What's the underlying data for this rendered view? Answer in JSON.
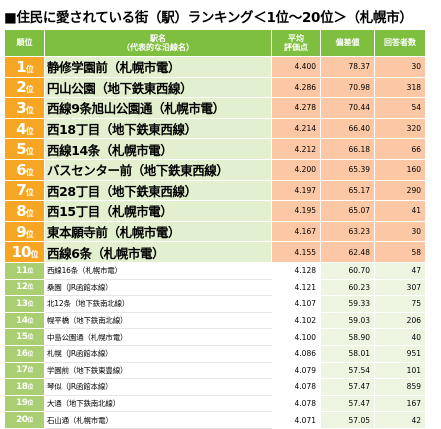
{
  "title": "■住民に愛されている街（駅）ランキング＜1位～20位＞（札幌市）",
  "headers": {
    "rank": "順位",
    "name_line1": "駅名",
    "name_line2": "（代表的な沿線名）",
    "score_line1": "平均",
    "score_line2": "評価点",
    "deviation": "偏差値",
    "respondents": "回答者数"
  },
  "rank_suffix": "位",
  "rows": [
    {
      "rank": "1",
      "name": "静修学園前（札幌市電）",
      "score": "4.400",
      "deviation": "78.37",
      "respondents": "30"
    },
    {
      "rank": "2",
      "name": "円山公園（地下鉄東西線）",
      "score": "4.286",
      "deviation": "70.98",
      "respondents": "318"
    },
    {
      "rank": "3",
      "name": "西線9条旭山公園通（札幌市電）",
      "score": "4.278",
      "deviation": "70.44",
      "respondents": "54"
    },
    {
      "rank": "4",
      "name": "西18丁目（地下鉄東西線）",
      "score": "4.214",
      "deviation": "66.40",
      "respondents": "320"
    },
    {
      "rank": "5",
      "name": "西線14条（札幌市電）",
      "score": "4.212",
      "deviation": "66.18",
      "respondents": "66"
    },
    {
      "rank": "6",
      "name": "バスセンター前（地下鉄東西線）",
      "score": "4.200",
      "deviation": "65.39",
      "respondents": "160"
    },
    {
      "rank": "7",
      "name": "西28丁目（地下鉄東西線）",
      "score": "4.197",
      "deviation": "65.17",
      "respondents": "290"
    },
    {
      "rank": "8",
      "name": "西15丁目（札幌市電）",
      "score": "4.195",
      "deviation": "65.07",
      "respondents": "41"
    },
    {
      "rank": "9",
      "name": "東本願寺前（札幌市電）",
      "score": "4.167",
      "deviation": "63.23",
      "respondents": "30"
    },
    {
      "rank": "10",
      "name": "西線6条（札幌市電）",
      "score": "4.155",
      "deviation": "62.48",
      "respondents": "58"
    },
    {
      "rank": "11",
      "name": "西線16条（札幌市電）",
      "score": "4.128",
      "deviation": "60.70",
      "respondents": "47"
    },
    {
      "rank": "12",
      "name": "桑園（JR函館本線）",
      "score": "4.121",
      "deviation": "60.23",
      "respondents": "307"
    },
    {
      "rank": "13",
      "name": "北12条（地下鉄南北線）",
      "score": "4.107",
      "deviation": "59.33",
      "respondents": "75"
    },
    {
      "rank": "14",
      "name": "幌平橋（地下鉄南北線）",
      "score": "4.102",
      "deviation": "59.03",
      "respondents": "206"
    },
    {
      "rank": "15",
      "name": "中島公園通（札幌市電）",
      "score": "4.100",
      "deviation": "58.90",
      "respondents": "40"
    },
    {
      "rank": "16",
      "name": "札幌（JR函館本線）",
      "score": "4.086",
      "deviation": "58.01",
      "respondents": "951"
    },
    {
      "rank": "17",
      "name": "学園前（地下鉄東豊線）",
      "score": "4.079",
      "deviation": "57.54",
      "respondents": "101"
    },
    {
      "rank": "18",
      "name": "琴似（JR函館本線）",
      "score": "4.078",
      "deviation": "57.47",
      "respondents": "859"
    },
    {
      "rank": "19",
      "name": "大通（地下鉄南北線）",
      "score": "4.078",
      "deviation": "57.47",
      "respondents": "167"
    },
    {
      "rank": "20",
      "name": "石山通（札幌市電）",
      "score": "4.071",
      "deviation": "57.05",
      "respondents": "42"
    }
  ]
}
